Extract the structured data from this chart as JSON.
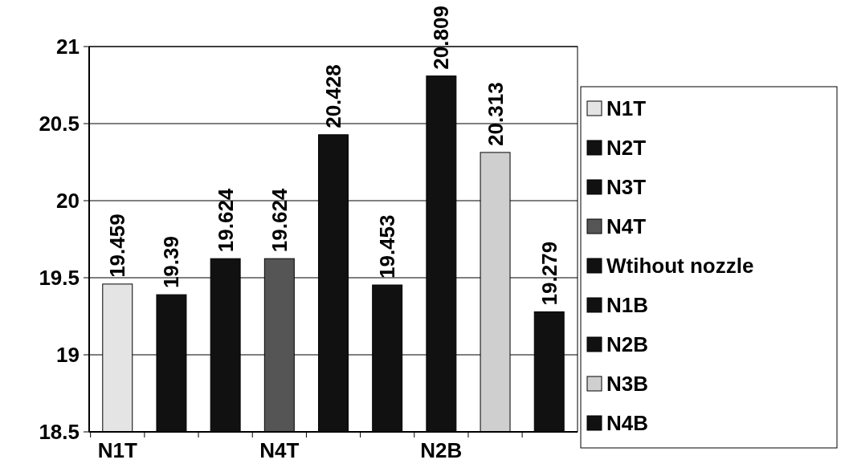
{
  "chart_data": {
    "type": "bar",
    "categories": [
      "N1T",
      null,
      null,
      "N4T",
      null,
      null,
      "N2B",
      null,
      null
    ],
    "series": [
      {
        "name": "N1T",
        "color": "#e4e4e4",
        "values": [
          19.459,
          null,
          null,
          null,
          null,
          null,
          null,
          null,
          null
        ]
      },
      {
        "name": "N2T",
        "color": "#111111",
        "values": [
          null,
          19.39,
          null,
          null,
          null,
          null,
          null,
          null,
          null
        ]
      },
      {
        "name": "N3T",
        "color": "#111111",
        "values": [
          null,
          null,
          19.624,
          null,
          null,
          null,
          null,
          null,
          null
        ]
      },
      {
        "name": "N4T",
        "color": "#555555",
        "values": [
          null,
          null,
          null,
          19.624,
          null,
          null,
          null,
          null,
          null
        ]
      },
      {
        "name": "Wtihout nozzle",
        "color": "#111111",
        "values": [
          null,
          null,
          null,
          null,
          20.428,
          null,
          null,
          null,
          null
        ]
      },
      {
        "name": "N1B",
        "color": "#111111",
        "values": [
          null,
          null,
          null,
          null,
          null,
          19.453,
          null,
          null,
          null
        ]
      },
      {
        "name": "N2B",
        "color": "#111111",
        "values": [
          null,
          null,
          null,
          null,
          null,
          null,
          20.809,
          null,
          null
        ]
      },
      {
        "name": "N3B",
        "color": "#cfcfcf",
        "values": [
          null,
          null,
          null,
          null,
          null,
          null,
          null,
          20.313,
          null
        ]
      },
      {
        "name": "N4B",
        "color": "#111111",
        "values": [
          null,
          null,
          null,
          null,
          null,
          null,
          null,
          null,
          19.279
        ]
      }
    ],
    "ylim": [
      18.5,
      21
    ],
    "yticks": [
      18.5,
      19,
      19.5,
      20,
      20.5,
      21
    ],
    "grid": "y",
    "legend": "right",
    "data_labels": true
  }
}
